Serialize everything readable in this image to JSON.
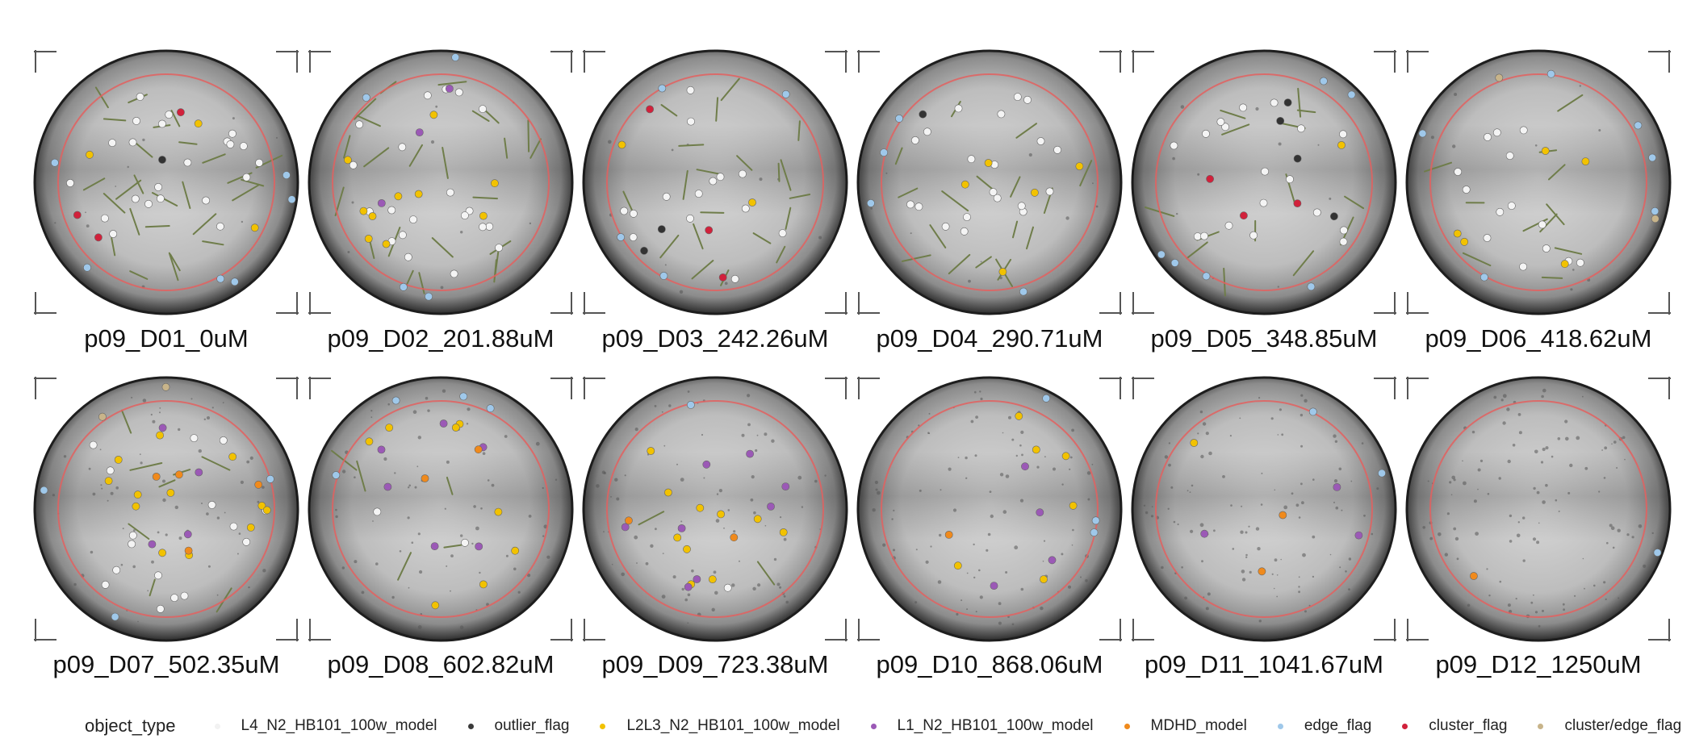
{
  "figure": {
    "panels": [
      {
        "label": "p09_D01_0uM"
      },
      {
        "label": "p09_D02_201.88uM"
      },
      {
        "label": "p09_D03_242.26uM"
      },
      {
        "label": "p09_D04_290.71uM"
      },
      {
        "label": "p09_D05_348.85uM"
      },
      {
        "label": "p09_D06_418.62uM"
      },
      {
        "label": "p09_D07_502.35uM"
      },
      {
        "label": "p09_D08_602.82uM"
      },
      {
        "label": "p09_D09_723.38uM"
      },
      {
        "label": "p09_D10_868.06uM"
      },
      {
        "label": "p09_D11_1041.67uM"
      },
      {
        "label": "p09_D12_1250uM"
      }
    ]
  },
  "legend": {
    "title": "object_type",
    "items": [
      {
        "label": "L4_N2_HB101_100w_model",
        "color": "#f2f2f2"
      },
      {
        "label": "outlier_flag",
        "color": "#3a3a3a"
      },
      {
        "label": "L2L3_N2_HB101_100w_model",
        "color": "#f2c200"
      },
      {
        "label": "L1_N2_HB101_100w_model",
        "color": "#9b59b6"
      },
      {
        "label": "MDHD_model",
        "color": "#f08a1c"
      },
      {
        "label": "edge_flag",
        "color": "#9fc8ea"
      },
      {
        "label": "cluster_flag",
        "color": "#d1213b"
      },
      {
        "label": "cluster/edge_flag",
        "color": "#c8b48a"
      }
    ]
  }
}
